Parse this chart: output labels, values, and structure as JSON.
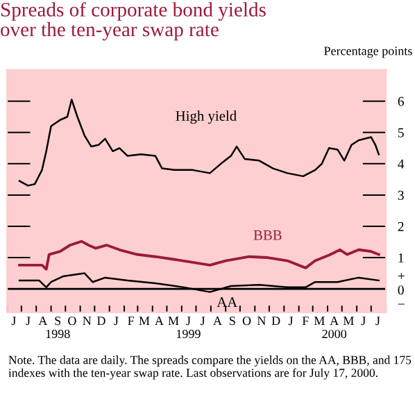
{
  "chart_data": {
    "type": "line",
    "title": "Spreads of corporate bond yields\nover the ten-year swap rate",
    "ylabel": "Percentage points",
    "xlim": [
      "1998-06-01",
      "2000-08-01"
    ],
    "ylim": [
      -0.75,
      7
    ],
    "yticks": [
      {
        "value": 0,
        "label": "+\n0\n−"
      },
      1,
      2,
      3,
      4,
      5,
      6
    ],
    "xticks": [
      {
        "value": "1998-06-01",
        "label": null
      },
      {
        "value": "1998-07-01",
        "label": null
      },
      {
        "value": "1998-08-01",
        "label": null
      },
      {
        "value": "1998-09-01",
        "label": null
      },
      {
        "value": "1998-10-01",
        "label": null
      },
      {
        "value": "1998-11-01",
        "label": null
      },
      {
        "value": "1998-12-01",
        "label": null
      },
      {
        "value": "1999-01-01",
        "label": null
      },
      {
        "value": "1999-02-01",
        "label": null
      },
      {
        "value": "1999-03-01",
        "label": null
      },
      {
        "value": "1999-04-01",
        "label": null
      },
      {
        "value": "1999-05-01",
        "label": null
      },
      {
        "value": "1999-06-01",
        "label": null
      },
      {
        "value": "1999-07-01",
        "label": null
      },
      {
        "value": "1999-08-01",
        "label": null
      },
      {
        "value": "1999-09-01",
        "label": null
      },
      {
        "value": "1999-10-01",
        "label": null
      },
      {
        "value": "1999-11-01",
        "label": null
      },
      {
        "value": "1999-12-01",
        "label": null
      },
      {
        "value": "2000-01-01",
        "label": null
      },
      {
        "value": "2000-02-01",
        "label": null
      },
      {
        "value": "2000-03-01",
        "label": null
      },
      {
        "value": "2000-04-01",
        "label": null
      },
      {
        "value": "2000-05-01",
        "label": null
      },
      {
        "value": "2000-06-01",
        "label": null
      },
      {
        "value": "2000-07-01",
        "label": null
      },
      {
        "value": "2000-08-01",
        "label": null
      },
      {
        "value": "1998-06-15",
        "label": "J"
      },
      {
        "value": "1998-07-15",
        "label": "J"
      },
      {
        "value": "1998-08-15",
        "label": "A"
      },
      {
        "value": "1998-09-15",
        "label": "S\n1998"
      },
      {
        "value": "1998-10-15",
        "label": "O"
      },
      {
        "value": "1998-11-15",
        "label": "N"
      },
      {
        "value": "1998-12-15",
        "label": "D"
      },
      {
        "value": "1999-01-15",
        "label": "J"
      },
      {
        "value": "1999-02-15",
        "label": "F"
      },
      {
        "value": "1999-03-15",
        "label": "M"
      },
      {
        "value": "1999-04-15",
        "label": "A"
      },
      {
        "value": "1999-05-15",
        "label": "M"
      },
      {
        "value": "1999-06-15",
        "label": "J\n1999"
      },
      {
        "value": "1999-07-15",
        "label": "J"
      },
      {
        "value": "1999-08-15",
        "label": "A"
      },
      {
        "value": "1999-09-15",
        "label": "S"
      },
      {
        "value": "1999-10-15",
        "label": "O"
      },
      {
        "value": "1999-11-15",
        "label": "N"
      },
      {
        "value": "1999-12-15",
        "label": "D"
      },
      {
        "value": "2000-01-15",
        "label": "J"
      },
      {
        "value": "2000-02-15",
        "label": "F"
      },
      {
        "value": "2000-03-15",
        "label": "M"
      },
      {
        "value": "2000-04-15",
        "label": "A\n2000"
      },
      {
        "value": "2000-05-15",
        "label": "M"
      },
      {
        "value": "2000-06-15",
        "label": "J"
      },
      {
        "value": "2000-07-15",
        "label": "J"
      }
    ],
    "ref_lines": [
      {
        "axis": "y",
        "value": 0,
        "color": "#000000"
      }
    ],
    "grid": false,
    "legend": false,
    "series": [
      {
        "name": "High yield",
        "color": "#000000",
        "x": [
          "1998-06-27",
          "1998-07-15",
          "1998-07-29",
          "1998-08-13",
          "1998-08-22",
          "1998-09-01",
          "1998-09-20",
          "1998-10-05",
          "1998-10-14",
          "1998-10-26",
          "1998-11-10",
          "1998-11-24",
          "1998-12-09",
          "1998-12-23",
          "1999-01-08",
          "1999-01-22",
          "1999-02-08",
          "1999-03-08",
          "1999-04-07",
          "1999-04-21",
          "1999-05-17",
          "1999-06-24",
          "1999-07-30",
          "1999-08-22",
          "1999-09-12",
          "1999-09-24",
          "1999-10-11",
          "1999-11-10",
          "1999-12-09",
          "2000-01-08",
          "2000-02-10",
          "2000-03-06",
          "2000-03-20",
          "2000-04-04",
          "2000-04-22",
          "2000-05-06",
          "2000-05-21",
          "2000-06-05",
          "2000-07-01",
          "2000-07-10",
          "2000-07-17"
        ],
        "values": [
          3.45,
          3.3,
          3.35,
          3.8,
          4.4,
          5.2,
          5.4,
          5.5,
          6.05,
          5.5,
          4.9,
          4.55,
          4.6,
          4.8,
          4.4,
          4.5,
          4.25,
          4.3,
          4.25,
          3.85,
          3.8,
          3.8,
          3.7,
          4.0,
          4.25,
          4.55,
          4.15,
          4.1,
          3.85,
          3.7,
          3.6,
          3.8,
          4.0,
          4.5,
          4.45,
          4.1,
          4.6,
          4.75,
          4.85,
          4.6,
          4.3
        ]
      },
      {
        "name": "BBB",
        "color": "#9b1b3a",
        "x": [
          "1998-06-27",
          "1998-08-13",
          "1998-08-22",
          "1998-08-28",
          "1998-09-20",
          "1998-10-11",
          "1998-11-04",
          "1998-11-18",
          "1998-12-03",
          "1998-12-26",
          "1999-01-22",
          "1999-02-28",
          "1999-04-07",
          "1999-05-17",
          "1999-06-24",
          "1999-07-30",
          "1999-09-01",
          "1999-10-20",
          "1999-11-28",
          "2000-01-08",
          "2000-02-15",
          "2000-03-06",
          "2000-04-04",
          "2000-04-27",
          "2000-05-12",
          "2000-06-05",
          "2000-06-30",
          "2000-07-17"
        ],
        "values": [
          0.76,
          0.76,
          0.63,
          1.1,
          1.2,
          1.4,
          1.52,
          1.4,
          1.3,
          1.4,
          1.25,
          1.1,
          1.03,
          0.94,
          0.85,
          0.76,
          0.9,
          1.03,
          1.0,
          0.9,
          0.67,
          0.9,
          1.08,
          1.25,
          1.1,
          1.25,
          1.2,
          1.1
        ]
      },
      {
        "name": "AA",
        "color": "#000000",
        "x": [
          "1998-06-27",
          "1998-08-07",
          "1998-08-22",
          "1998-09-01",
          "1998-09-26",
          "1998-11-10",
          "1998-11-27",
          "1998-12-23",
          "1999-02-08",
          "1999-04-07",
          "1999-06-06",
          "1999-07-30",
          "1999-09-12",
          "1999-11-10",
          "2000-01-08",
          "2000-02-15",
          "2000-03-06",
          "2000-04-22",
          "2000-06-05",
          "2000-07-17"
        ],
        "values": [
          0.27,
          0.27,
          0.05,
          0.22,
          0.4,
          0.5,
          0.22,
          0.36,
          0.27,
          0.18,
          0.05,
          -0.1,
          0.09,
          0.13,
          0.05,
          0.05,
          0.22,
          0.22,
          0.36,
          0.27
        ]
      }
    ],
    "annotations": [
      "Note. The data are daily. The spreads compare the yields on the AA, BBB, and 175 indexes with the ten-year swap rate. Last observations are for July 17, 2000."
    ]
  }
}
